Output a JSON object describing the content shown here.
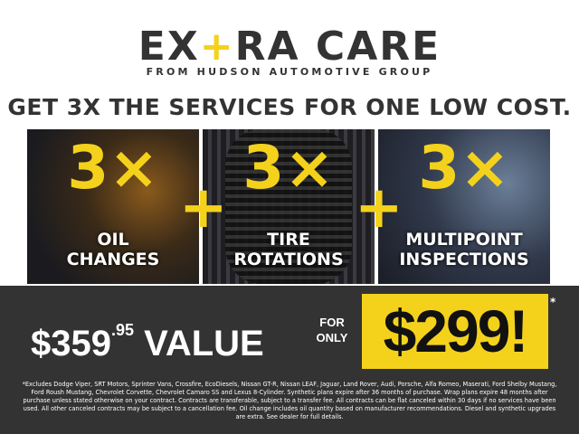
{
  "logo": {
    "part1": "EX",
    "plus": "+",
    "part2": "RA CARE",
    "subtitle": "FROM HUDSON AUTOMOTIVE GROUP"
  },
  "headline": "GET 3X THE SERVICES FOR ONE LOW COST.",
  "services": [
    {
      "count": "3×",
      "line1": "OIL",
      "line2": "CHANGES"
    },
    {
      "count": "3×",
      "line1": "TIRE",
      "line2": "ROTATIONS"
    },
    {
      "count": "3×",
      "line1": "MULTIPOINT",
      "line2": "INSPECTIONS"
    }
  ],
  "plus_sign": "+",
  "offer": {
    "value_dollars": "$359",
    "value_cents": ".95",
    "value_label": "VALUE",
    "for": "FOR",
    "only": "ONLY",
    "price": "$299!",
    "asterisk": "*"
  },
  "disclaimer": "*Excludes Dodge Viper, SRT Motors, Sprinter Vans, Crossfire, EcoDiesels, Nissan GT-R, Nissan LEAF, Jaguar, Land Rover, Audi, Porsche, Alfa Romeo, Maserati, Ford Shelby Mustang, Ford Roush Mustang, Chevrolet Corvette, Chevrolet Camaro SS and Lexus 8-Cylinder. Synthetic plans expire after 36 months of purchase. Wrap plans expire 48 months after purchase unless stated otherwise on your contract. Contracts are transferable, subject to a transfer fee. All contracts can be flat canceled within 30 days if no services have been used. All other canceled contracts may be subject to a cancellation fee. Oil change includes oil quantity based on manufacturer recommendations. Diesel and synthetic upgrades are extra. See dealer for full details.",
  "colors": {
    "accent": "#f4d21c",
    "dark": "#333334"
  }
}
